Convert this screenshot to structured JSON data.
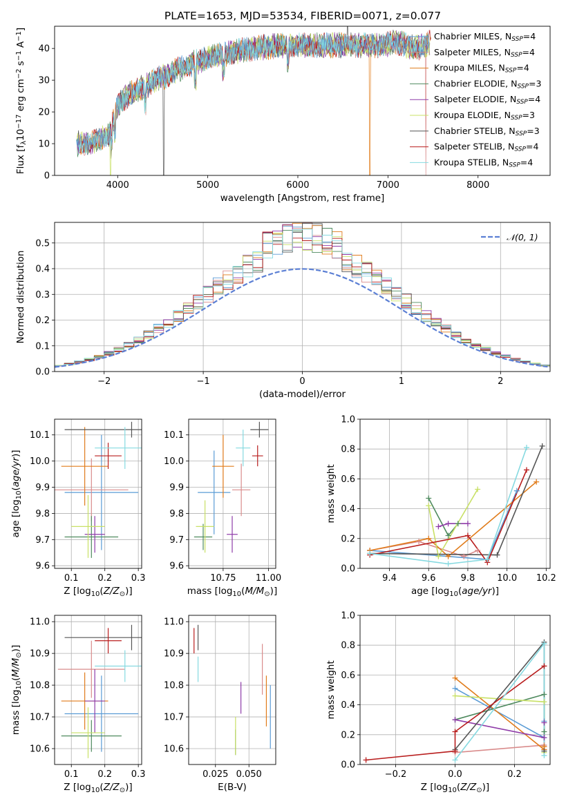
{
  "figure_title": "PLATE=1653, MJD=53534, FIBERID=0071, z=0.077",
  "colors": {
    "Chabrier MILES": "#5a9bd5",
    "Salpeter MILES": "#d98b8b",
    "Kroupa MILES": "#e07b1a",
    "Chabrier ELODIE": "#4e8a5e",
    "Salpeter ELODIE": "#8e3ba8",
    "Kroupa ELODIE": "#c8e065",
    "Chabrier STELIB": "#555555",
    "Salpeter STELIB": "#b81c1c",
    "Kroupa STELIB": "#85d9e0",
    "gauss": "#5b7fd4",
    "grid": "#b0b0b0"
  },
  "chart_data": [
    {
      "id": "spectrum",
      "type": "line",
      "title": "PLATE=1653, MJD=53534, FIBERID=0071, z=0.077",
      "xlabel": "wavelength [Angstrom, rest frame]",
      "ylabel": "Flux [f_λ 10^-17 erg cm^-2 s^-1 A^-1]",
      "xlim": [
        3300,
        8800
      ],
      "ylim": [
        0,
        47
      ],
      "xticks": [
        4000,
        5000,
        6000,
        7000,
        8000
      ],
      "yticks": [
        0,
        10,
        20,
        30,
        40
      ],
      "grid": false,
      "legend": "top-right",
      "legend_entries": [
        {
          "model": "Chabrier MILES",
          "nssp": "4"
        },
        {
          "model": "Salpeter MILES",
          "nssp": "4"
        },
        {
          "model": "Kroupa MILES",
          "nssp": "4"
        },
        {
          "model": "Chabrier ELODIE",
          "nssp": "3"
        },
        {
          "model": "Salpeter ELODIE",
          "nssp": "4"
        },
        {
          "model": "Kroupa ELODIE",
          "nssp": "3"
        },
        {
          "model": "Chabrier STELIB",
          "nssp": "3"
        },
        {
          "model": "Salpeter STELIB",
          "nssp": "4"
        },
        {
          "model": "Kroupa STELIB",
          "nssp": "4"
        }
      ],
      "envelope": {
        "x": [
          3550,
          3700,
          3900,
          4000,
          4100,
          4300,
          4500,
          4800,
          5000,
          5300,
          5500,
          5800,
          6000,
          6300,
          6600,
          6900,
          7100,
          7300,
          7500
        ],
        "y": [
          10,
          10,
          13,
          22,
          25,
          28,
          31,
          35,
          37,
          39,
          40,
          41,
          41,
          41,
          41,
          41,
          42,
          40,
          42
        ]
      }
    },
    {
      "id": "residuals",
      "type": "histogram",
      "xlabel": "(data-model)/error",
      "ylabel": "Normed distribution",
      "xlim": [
        -2.5,
        2.5
      ],
      "ylim": [
        0,
        0.58
      ],
      "xticks": [
        -2,
        -1,
        0,
        1,
        2
      ],
      "yticks": [
        0.0,
        0.1,
        0.2,
        0.3,
        0.4,
        0.5
      ],
      "grid": true,
      "legend": "top-right",
      "legend_label": "𝒩(0, 1)",
      "bin_width": 0.1,
      "peak": 0.5
    },
    {
      "id": "age_vs_Z",
      "type": "errorbar",
      "xlabel": "Z [log10(Z/Z⊙)]",
      "ylabel": "age  [log10(age/yr)]",
      "xlim": [
        0.05,
        0.31
      ],
      "ylim": [
        9.59,
        10.16
      ],
      "xticks": [
        0.1,
        0.2,
        0.3
      ],
      "yticks": [
        9.6,
        9.7,
        9.8,
        9.9,
        10.0,
        10.1
      ],
      "grid": true,
      "points": [
        {
          "model": "Chabrier MILES",
          "x": 0.19,
          "xerr": 0.11,
          "y": 9.88,
          "yerr": 0.22
        },
        {
          "model": "Salpeter MILES",
          "x": 0.16,
          "xerr": 0.11,
          "y": 9.89,
          "yerr": 0.12
        },
        {
          "model": "Kroupa MILES",
          "x": 0.14,
          "xerr": 0.07,
          "y": 9.98,
          "yerr": 0.15
        },
        {
          "model": "Chabrier ELODIE",
          "x": 0.16,
          "xerr": 0.08,
          "y": 9.71,
          "yerr": 0.08
        },
        {
          "model": "Salpeter ELODIE",
          "x": 0.17,
          "xerr": 0.03,
          "y": 9.72,
          "yerr": 0.07
        },
        {
          "model": "Kroupa ELODIE",
          "x": 0.15,
          "xerr": 0.05,
          "y": 9.75,
          "yerr": 0.12
        },
        {
          "model": "Chabrier STELIB",
          "x": 0.28,
          "xerr": 0.2,
          "y": 10.12,
          "yerr": 0.03
        },
        {
          "model": "Salpeter STELIB",
          "x": 0.21,
          "xerr": 0.04,
          "y": 10.02,
          "yerr": 0.05
        },
        {
          "model": "Kroupa STELIB",
          "x": 0.26,
          "xerr": 0.09,
          "y": 10.05,
          "yerr": 0.08
        }
      ]
    },
    {
      "id": "age_vs_mass",
      "type": "errorbar",
      "xlabel": "mass [log10(M/M⊙)]",
      "ylabel": "",
      "xlim": [
        10.56,
        11.04
      ],
      "ylim": [
        9.59,
        10.16
      ],
      "xticks": [
        10.75,
        11.0
      ],
      "yticks": [
        9.6,
        9.7,
        9.8,
        9.9,
        10.0,
        10.1
      ],
      "grid": true,
      "points": [
        {
          "model": "Chabrier MILES",
          "x": 10.7,
          "xerr": 0.09,
          "y": 9.88,
          "yerr": 0.16
        },
        {
          "model": "Salpeter MILES",
          "x": 10.85,
          "xerr": 0.05,
          "y": 9.89,
          "yerr": 0.1
        },
        {
          "model": "Kroupa MILES",
          "x": 10.75,
          "xerr": 0.06,
          "y": 9.98,
          "yerr": 0.12
        },
        {
          "model": "Chabrier ELODIE",
          "x": 10.64,
          "xerr": 0.05,
          "y": 9.71,
          "yerr": 0.05
        },
        {
          "model": "Salpeter ELODIE",
          "x": 10.8,
          "xerr": 0.03,
          "y": 9.72,
          "yerr": 0.07
        },
        {
          "model": "Kroupa ELODIE",
          "x": 10.65,
          "xerr": 0.05,
          "y": 9.75,
          "yerr": 0.1
        },
        {
          "model": "Chabrier STELIB",
          "x": 10.95,
          "xerr": 0.05,
          "y": 10.12,
          "yerr": 0.03
        },
        {
          "model": "Salpeter STELIB",
          "x": 10.94,
          "xerr": 0.03,
          "y": 10.02,
          "yerr": 0.04
        },
        {
          "model": "Kroupa STELIB",
          "x": 10.86,
          "xerr": 0.04,
          "y": 10.05,
          "yerr": 0.07
        }
      ]
    },
    {
      "id": "weight_vs_age",
      "type": "line",
      "xlabel": "age  [log10(age/yr)]",
      "ylabel": "mass weight",
      "xlim": [
        9.25,
        10.22
      ],
      "ylim": [
        0,
        1
      ],
      "xticks": [
        9.4,
        9.6,
        9.8,
        10.0,
        10.2
      ],
      "yticks": [
        0.0,
        0.2,
        0.4,
        0.6,
        0.8,
        1.0
      ],
      "grid": true,
      "series": [
        {
          "model": "Chabrier MILES",
          "x": [
            9.3,
            9.9,
            10.05
          ],
          "y": [
            0.12,
            0.06,
            0.52
          ]
        },
        {
          "model": "Salpeter MILES",
          "x": [
            9.3,
            9.55,
            9.78,
            9.85
          ],
          "y": [
            0.12,
            0.18,
            0.08,
            0.12
          ]
        },
        {
          "model": "Kroupa MILES",
          "x": [
            9.3,
            9.6,
            9.7,
            10.15
          ],
          "y": [
            0.12,
            0.2,
            0.08,
            0.58
          ]
        },
        {
          "model": "Chabrier ELODIE",
          "x": [
            9.6,
            9.7,
            9.75
          ],
          "y": [
            0.47,
            0.22,
            0.3
          ]
        },
        {
          "model": "Salpeter ELODIE",
          "x": [
            9.65,
            9.7,
            9.8
          ],
          "y": [
            0.28,
            0.3,
            0.3
          ]
        },
        {
          "model": "Kroupa ELODIE",
          "x": [
            9.6,
            9.65,
            9.85
          ],
          "y": [
            0.42,
            0.08,
            0.53
          ]
        },
        {
          "model": "Chabrier STELIB",
          "x": [
            9.3,
            9.95,
            10.18
          ],
          "y": [
            0.1,
            0.09,
            0.82
          ]
        },
        {
          "model": "Salpeter STELIB",
          "x": [
            9.3,
            9.8,
            9.9,
            10.1
          ],
          "y": [
            0.09,
            0.22,
            0.04,
            0.66
          ]
        },
        {
          "model": "Kroupa STELIB",
          "x": [
            9.3,
            9.7,
            9.9,
            10.1
          ],
          "y": [
            0.1,
            0.03,
            0.06,
            0.81
          ]
        }
      ]
    },
    {
      "id": "mass_vs_Z",
      "type": "errorbar",
      "xlabel": "Z [log10(Z/Z⊙)]",
      "ylabel": "mass [log10(M/M⊙)]",
      "xlim": [
        0.05,
        0.31
      ],
      "ylim": [
        10.55,
        11.02
      ],
      "xticks": [
        0.1,
        0.2,
        0.3
      ],
      "yticks": [
        10.6,
        10.7,
        10.8,
        10.9,
        11.0
      ],
      "grid": true,
      "points": [
        {
          "model": "Chabrier MILES",
          "x": 0.19,
          "xerr": 0.11,
          "y": 10.71,
          "yerr": 0.12
        },
        {
          "model": "Salpeter MILES",
          "x": 0.16,
          "xerr": 0.1,
          "y": 10.85,
          "yerr": 0.09
        },
        {
          "model": "Kroupa MILES",
          "x": 0.14,
          "xerr": 0.07,
          "y": 10.75,
          "yerr": 0.09
        },
        {
          "model": "Chabrier ELODIE",
          "x": 0.16,
          "xerr": 0.09,
          "y": 10.64,
          "yerr": 0.05
        },
        {
          "model": "Salpeter ELODIE",
          "x": 0.17,
          "xerr": 0.03,
          "y": 10.75,
          "yerr": 0.1
        },
        {
          "model": "Kroupa ELODIE",
          "x": 0.15,
          "xerr": 0.05,
          "y": 10.65,
          "yerr": 0.08
        },
        {
          "model": "Chabrier STELIB",
          "x": 0.28,
          "xerr": 0.2,
          "y": 10.95,
          "yerr": 0.04
        },
        {
          "model": "Salpeter STELIB",
          "x": 0.21,
          "xerr": 0.04,
          "y": 10.94,
          "yerr": 0.04
        },
        {
          "model": "Kroupa STELIB",
          "x": 0.26,
          "xerr": 0.09,
          "y": 10.86,
          "yerr": 0.05
        }
      ]
    },
    {
      "id": "mass_vs_EBV",
      "type": "errorbar",
      "xlabel": "E(B-V)",
      "ylabel": "",
      "xlim": [
        0.005,
        0.07
      ],
      "ylim": [
        10.55,
        11.02
      ],
      "xticks": [
        0.025,
        0.05
      ],
      "yticks": [
        10.6,
        10.7,
        10.8,
        10.9,
        11.0
      ],
      "grid": true,
      "points": [
        {
          "model": "Chabrier MILES",
          "x": 0.066,
          "y": 10.7,
          "yerr": 0.1
        },
        {
          "model": "Salpeter MILES",
          "x": 0.06,
          "y": 10.85,
          "yerr": 0.08
        },
        {
          "model": "Kroupa MILES",
          "x": 0.063,
          "y": 10.75,
          "yerr": 0.08
        },
        {
          "model": "Chabrier ELODIE",
          "x": 0.04,
          "y": 10.62,
          "yerr": 0.04
        },
        {
          "model": "Salpeter ELODIE",
          "x": 0.044,
          "y": 10.76,
          "yerr": 0.05
        },
        {
          "model": "Kroupa ELODIE",
          "x": 0.04,
          "y": 10.64,
          "yerr": 0.06
        },
        {
          "model": "Chabrier STELIB",
          "x": 0.012,
          "y": 10.95,
          "yerr": 0.04
        },
        {
          "model": "Salpeter STELIB",
          "x": 0.009,
          "y": 10.94,
          "yerr": 0.04
        },
        {
          "model": "Kroupa STELIB",
          "x": 0.012,
          "y": 10.85,
          "yerr": 0.04
        }
      ]
    },
    {
      "id": "weight_vs_Z",
      "type": "line",
      "xlabel": "Z [log10(Z/Z⊙)]",
      "ylabel": "mass weight",
      "xlim": [
        -0.32,
        0.32
      ],
      "ylim": [
        0,
        1
      ],
      "xticks": [
        -0.2,
        0.0,
        0.2
      ],
      "yticks": [
        0.0,
        0.2,
        0.4,
        0.6,
        0.8,
        1.0
      ],
      "grid": true,
      "series": [
        {
          "model": "Chabrier MILES",
          "x": [
            0.0,
            0.3,
            0.3
          ],
          "y": [
            0.51,
            0.18,
            0.29
          ]
        },
        {
          "model": "Salpeter MILES",
          "x": [
            0.0,
            0.3,
            0.3
          ],
          "y": [
            0.08,
            0.13,
            0.1
          ]
        },
        {
          "model": "Kroupa MILES",
          "x": [
            0.0,
            0.3,
            0.3
          ],
          "y": [
            0.58,
            0.1,
            0.12
          ]
        },
        {
          "model": "Chabrier ELODIE",
          "x": [
            0.0,
            0.3,
            0.3
          ],
          "y": [
            0.3,
            0.47,
            0.22
          ]
        },
        {
          "model": "Salpeter ELODIE",
          "x": [
            0.0,
            0.3,
            0.3
          ],
          "y": [
            0.3,
            0.18,
            0.28
          ]
        },
        {
          "model": "Kroupa ELODIE",
          "x": [
            0.0,
            0.3,
            0.3
          ],
          "y": [
            0.46,
            0.42,
            0.08
          ]
        },
        {
          "model": "Chabrier STELIB",
          "x": [
            0.0,
            0.3,
            0.3
          ],
          "y": [
            0.1,
            0.82,
            0.09
          ]
        },
        {
          "model": "Salpeter STELIB",
          "x": [
            -0.3,
            0.0,
            0.0,
            0.3
          ],
          "y": [
            0.03,
            0.09,
            0.22,
            0.66
          ]
        },
        {
          "model": "Kroupa STELIB",
          "x": [
            0.0,
            0.3,
            0.3
          ],
          "y": [
            0.03,
            0.81,
            0.06
          ]
        }
      ]
    }
  ]
}
